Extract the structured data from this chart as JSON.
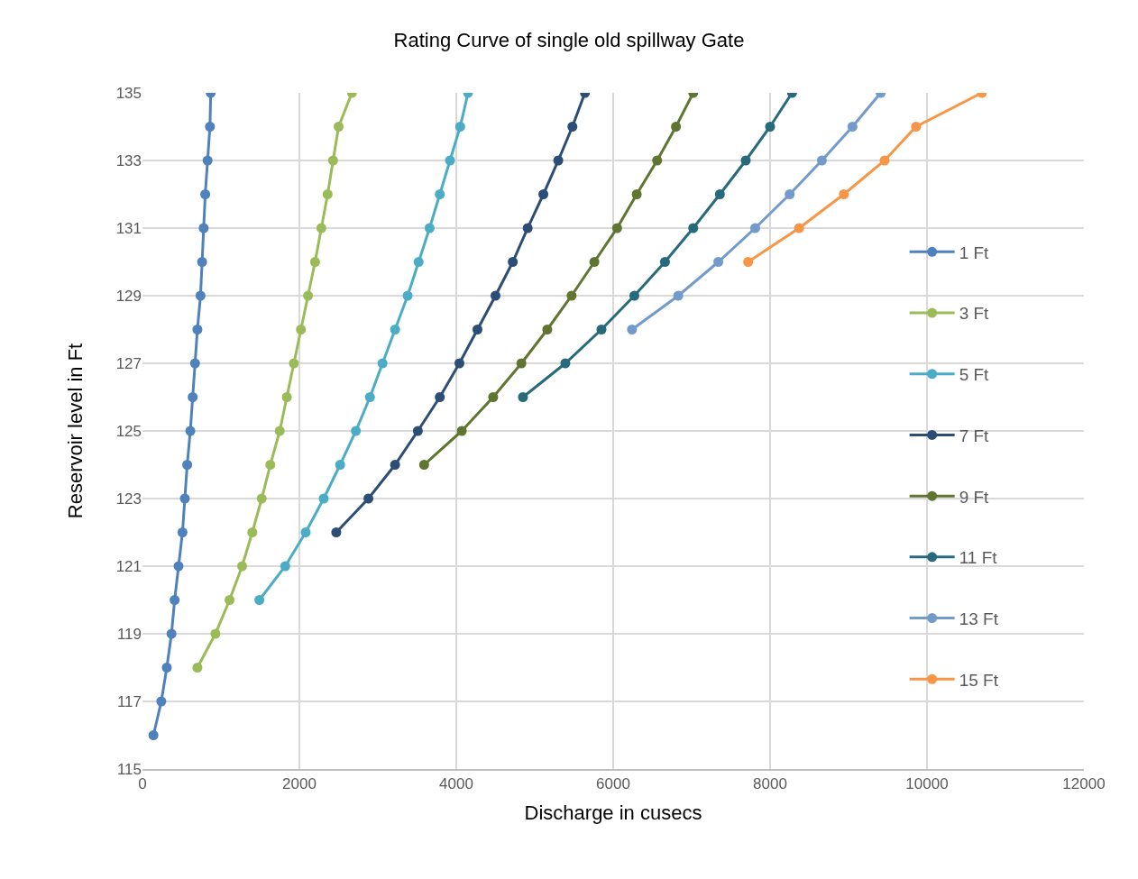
{
  "chart_data": {
    "type": "line",
    "title": "Rating Curve of single old spillway Gate",
    "xlabel": "Discharge in cusecs",
    "ylabel": "Reservoir level in Ft",
    "xlim": [
      0,
      12000
    ],
    "xticks": [
      0,
      2000,
      4000,
      6000,
      8000,
      10000,
      12000
    ],
    "ylim": [
      115,
      135
    ],
    "yticks": [
      115,
      117,
      119,
      121,
      123,
      125,
      127,
      129,
      131,
      133,
      135
    ],
    "grid": true,
    "legend": "right",
    "marker": "circle",
    "line_style": "solid",
    "series": [
      {
        "name": "1 Ft",
        "color": "#4f81bd",
        "x": [
          140,
          240,
          310,
          370,
          410,
          460,
          510,
          540,
          570,
          610,
          640,
          670,
          700,
          740,
          760,
          780,
          800,
          830,
          860,
          870
        ],
        "values": [
          116,
          117,
          118,
          119,
          120,
          121,
          122,
          123,
          124,
          125,
          126,
          127,
          128,
          129,
          130,
          131,
          132,
          133,
          134,
          135
        ]
      },
      {
        "name": "3 Ft",
        "color": "#9bbb59",
        "x": [
          700,
          930,
          1110,
          1270,
          1400,
          1520,
          1630,
          1750,
          1840,
          1930,
          2020,
          2110,
          2200,
          2280,
          2360,
          2430,
          2500,
          2670
        ],
        "values": [
          118,
          119,
          120,
          121,
          122,
          123,
          124,
          125,
          126,
          127,
          128,
          129,
          130,
          131,
          132,
          133,
          134,
          135
        ]
      },
      {
        "name": "5 Ft",
        "color": "#4bacc6",
        "x": [
          1490,
          1820,
          2080,
          2310,
          2520,
          2720,
          2900,
          3060,
          3220,
          3380,
          3520,
          3660,
          3790,
          3920,
          4050,
          4150
        ],
        "values": [
          120,
          121,
          122,
          123,
          124,
          125,
          126,
          127,
          128,
          129,
          130,
          131,
          132,
          133,
          134,
          135
        ]
      },
      {
        "name": "7 Ft",
        "color": "#2c4d75",
        "x": [
          2470,
          2880,
          3220,
          3510,
          3790,
          4040,
          4270,
          4500,
          4720,
          4910,
          5110,
          5300,
          5480,
          5640
        ],
        "values": [
          122,
          123,
          124,
          125,
          126,
          127,
          128,
          129,
          130,
          131,
          132,
          133,
          134,
          135
        ]
      },
      {
        "name": "9 Ft",
        "color": "#5f7530",
        "x": [
          3590,
          4070,
          4470,
          4830,
          5160,
          5470,
          5760,
          6050,
          6300,
          6560,
          6800,
          7020
        ],
        "values": [
          124,
          125,
          126,
          127,
          128,
          129,
          130,
          131,
          132,
          133,
          134,
          135
        ]
      },
      {
        "name": "11 Ft",
        "color": "#276a7c",
        "x": [
          4850,
          5390,
          5850,
          6270,
          6660,
          7020,
          7360,
          7690,
          8000,
          8280
        ],
        "values": [
          126,
          127,
          128,
          129,
          130,
          131,
          132,
          133,
          134,
          135
        ]
      },
      {
        "name": "13 Ft",
        "color": "#729aca",
        "x": [
          6240,
          6830,
          7340,
          7810,
          8250,
          8660,
          9050,
          9410
        ],
        "values": [
          128,
          129,
          130,
          131,
          132,
          133,
          134,
          135
        ]
      },
      {
        "name": "15 Ft",
        "color": "#f79646",
        "x": [
          7720,
          8370,
          8940,
          9460,
          9860,
          10700
        ],
        "values": [
          130,
          131,
          132,
          133,
          134,
          135
        ]
      }
    ]
  }
}
